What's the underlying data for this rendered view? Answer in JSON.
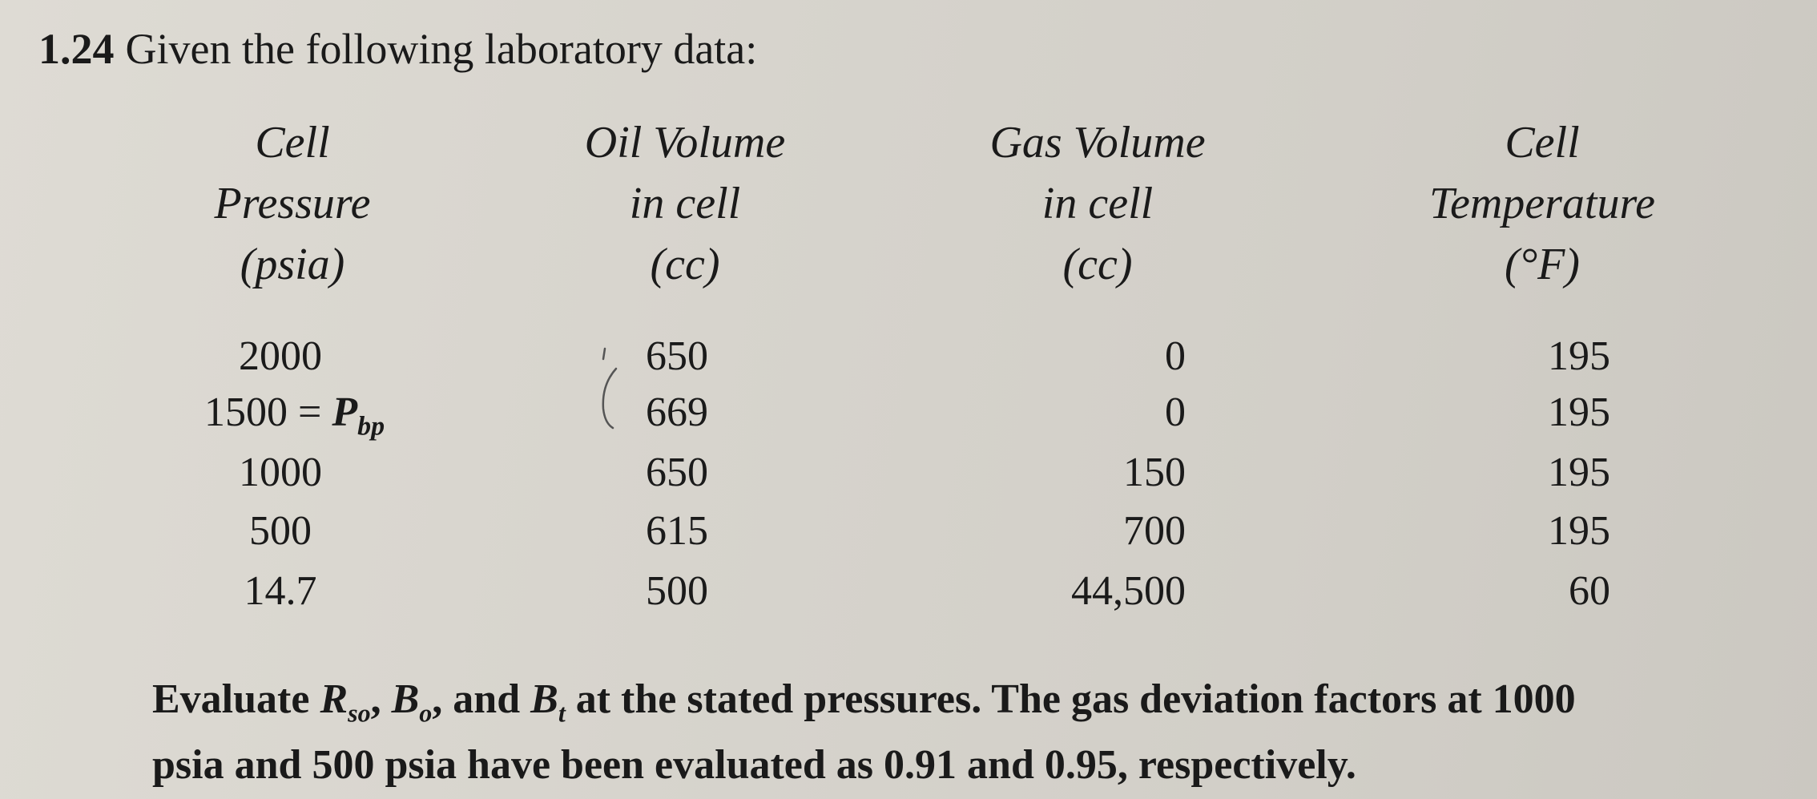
{
  "problem": {
    "number": "1.24",
    "intro": "Given the following laboratory data:"
  },
  "table": {
    "headers": [
      [
        "Cell",
        "Pressure",
        "(psia)"
      ],
      [
        "Oil Volume",
        "in cell",
        "(cc)"
      ],
      [
        "Gas Volume",
        "in cell",
        "(cc)"
      ],
      [
        "Cell",
        "Temperature",
        "(°F)"
      ]
    ],
    "rows": [
      {
        "pressure": "2000",
        "oil": "650",
        "gas": "0",
        "temp": "195"
      },
      {
        "pressure": "1500 = ",
        "pressure_sym": "P",
        "pressure_sub": "bp",
        "oil": "669",
        "gas": "0",
        "temp": "195"
      },
      {
        "pressure": "1000",
        "oil": "650",
        "gas": "150",
        "temp": "195"
      },
      {
        "pressure": "500",
        "oil": "615",
        "gas": "700",
        "temp": "195"
      },
      {
        "pressure": "14.7",
        "oil": "500",
        "gas": "44,500",
        "temp": "60"
      }
    ]
  },
  "footer": {
    "line1_a": "Evaluate ",
    "rso_sym": "R",
    "rso_sub": "so",
    "sep1": ", ",
    "bo_sym": "B",
    "bo_sub": "o",
    "sep2": ", and ",
    "bt_sym": "B",
    "bt_sub": "t",
    "line1_b": " at the stated pressures. The gas deviation factors at 1000",
    "line2": "psia and 500 psia have been evaluated as 0.91 and 0.95, respectively."
  }
}
